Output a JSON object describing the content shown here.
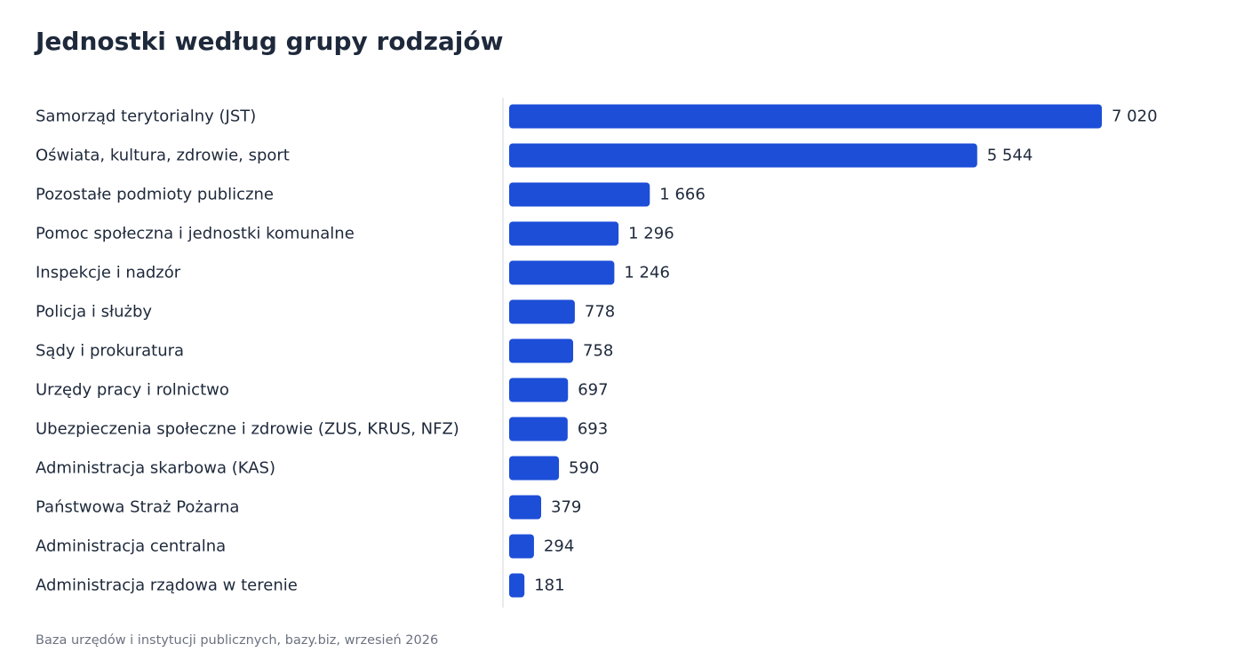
{
  "chart_data": {
    "type": "bar",
    "orientation": "horizontal",
    "title": "Jednostki według grupy rodzajów",
    "categories": [
      "Samorząd terytorialny (JST)",
      "Oświata, kultura, zdrowie, sport",
      "Pozostałe podmioty publiczne",
      "Pomoc społeczna i jednostki komunalne",
      "Inspekcje i nadzór",
      "Policja i służby",
      "Sądy i prokuratura",
      "Urzędy pracy i rolnictwo",
      "Ubezpieczenia społeczne i zdrowie (ZUS, KRUS, NFZ)",
      "Administracja skarbowa (KAS)",
      "Państwowa Straż Pożarna",
      "Administracja centralna",
      "Administracja rządowa w terenie"
    ],
    "values": [
      7020,
      5544,
      1666,
      1296,
      1246,
      778,
      758,
      697,
      693,
      590,
      379,
      294,
      181
    ],
    "value_labels": [
      "7 020",
      "5 544",
      "1 666",
      "1 296",
      "1 246",
      "778",
      "758",
      "697",
      "693",
      "590",
      "379",
      "294",
      "181"
    ],
    "xlabel": "",
    "ylabel": "",
    "xlim": [
      0,
      7020
    ],
    "grid": false,
    "legend": "none",
    "bar_color": "#1d4ed8",
    "source": "Baza urzędów i instytucji publicznych, bazy.biz, wrzesień 2026"
  }
}
